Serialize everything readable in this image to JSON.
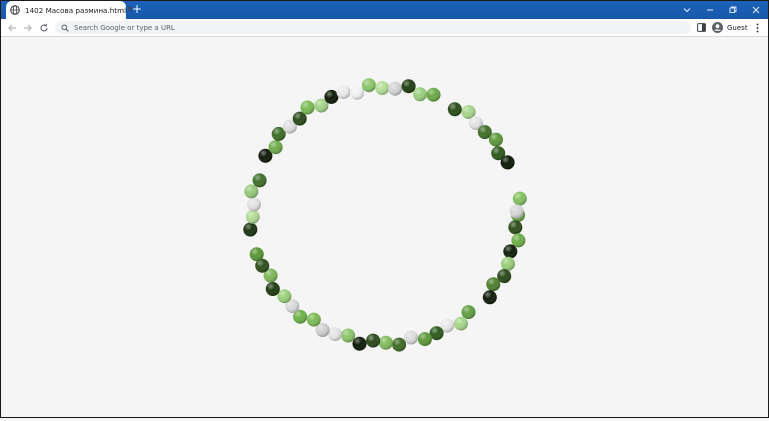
{
  "browser": {
    "tab_title": "1402 Масова разминa.html",
    "address_placeholder": "Search Google or type a URL",
    "profile_label": "Guest",
    "accent": "#1a5fb4"
  },
  "icons": {
    "favicon": "globe-icon",
    "close": "close-icon",
    "new_tab": "plus-icon",
    "back": "back-arrow-icon",
    "forward": "forward-arrow-icon",
    "reload": "reload-icon",
    "search": "search-icon",
    "side_panel": "side-panel-icon",
    "profile": "avatar-icon",
    "menu": "kebab-menu-icon"
  },
  "scene": {
    "description_colors": [
      "#1e3a12",
      "#365f22",
      "#5b8f3a",
      "#7db45a",
      "#a7d28a",
      "#e6e6e6",
      "#0d1a07"
    ],
    "ring_color_sequence": [
      "#6ea84a",
      "#2e4f1c",
      "#6fae4b",
      "#101f0a",
      "#9bcd7a",
      "#2a481a",
      "#4f7f2f",
      "#111d0b",
      "#62a044",
      "#a6d68a",
      "#e9e9e9",
      "#2d5a1c",
      "#5f9a3b",
      "#dcdcdc",
      "#3e6a26",
      "#84bd5e",
      "#2c4a1b",
      "#0f1c09",
      "#8cc56a",
      "#e5e5e5",
      "#d0d0d0",
      "#7ebc57",
      "#6fb14c",
      "#d9d9d9",
      "#9ad07b",
      "#203c13",
      "#7eb75c",
      "#2e4f1c",
      "#5a9636",
      "#1b3410",
      "#b4dc98",
      "#e2e2e2",
      "#98c97b",
      "#40702a",
      "#0e1a08",
      "#6eab4c",
      "#3e6d27",
      "#dedede",
      "#2a4a1b",
      "#7cbb57",
      "#a3d387",
      "#0d1a07",
      "#ebebeb",
      "#f2f2f2",
      "#8bc66a",
      "#b6df98",
      "#d3d3d3",
      "#213e14",
      "#9bd07e",
      "#6ba948",
      "#2b4f1c",
      "#a8d68d",
      "#e4e4e4",
      "#416f29",
      "#5e9b3c",
      "#2f5a1d",
      "#0d1a07",
      "#84c162",
      "#d7d7d7",
      "#a1d085"
    ]
  }
}
